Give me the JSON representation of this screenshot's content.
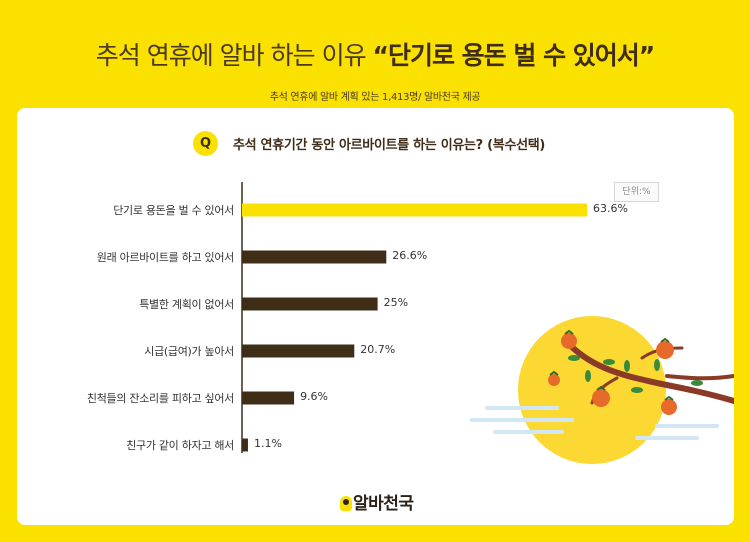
{
  "header": {
    "title_main": "추석 연휴에 알바 하는 이유",
    "title_highlight": "“단기로 용돈 벌 수 있어서”",
    "subtitle": "추석 연휴에 알바 계획 있는 1,413명/ 알바천국 제공"
  },
  "question": {
    "badge": "Q",
    "text": "추석 연휴기간 동안 아르바이트를 하는 이유는? (복수선택)"
  },
  "unit_label": "단위:%",
  "footer": {
    "logo_text": "알바천국"
  },
  "colors": {
    "background": "#fbe100",
    "highlight_bar": "#fbe100",
    "bar": "#3f2d18",
    "moon": "#fbd832",
    "persimmon": "#e86a2a",
    "branch": "#8a3a26"
  },
  "chart_data": {
    "type": "bar",
    "orientation": "horizontal",
    "title": "추석 연휴기간 동안 아르바이트를 하는 이유는? (복수선택)",
    "unit": "%",
    "categories": [
      "단기로 용돈을 벌 수 있어서",
      "원래 아르바이트를 하고 있어서",
      "특별한 계획이 없어서",
      "시급(급여)가 높아서",
      "친척들의 잔소리를 피하고 싶어서",
      "친구가 같이 하자고 해서"
    ],
    "values": [
      63.6,
      26.6,
      25,
      20.7,
      9.6,
      1.1
    ],
    "value_labels": [
      "63.6%",
      "26.6%",
      "25%",
      "20.7%",
      "9.6%",
      "1.1%"
    ],
    "highlight_index": 0,
    "xlim": [
      0,
      63.6
    ],
    "grid": false,
    "legend": "none"
  }
}
